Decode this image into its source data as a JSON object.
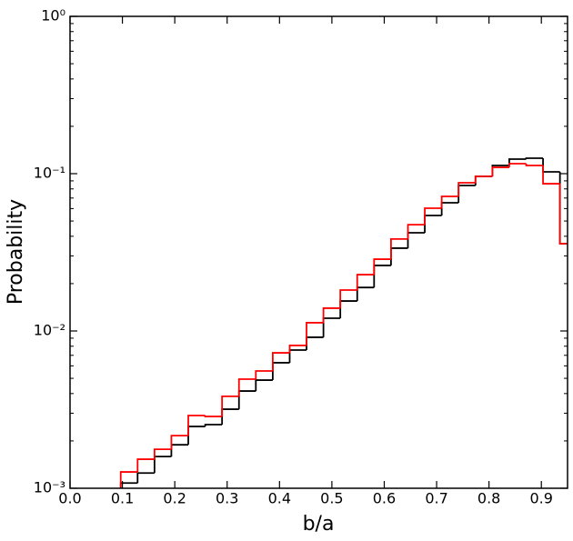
{
  "chart_data": {
    "type": "histogram",
    "x_label": "b/a",
    "y_label": "Probability",
    "bins": [
      0.0968,
      0.129,
      0.1613,
      0.1935,
      0.2258,
      0.2581,
      0.2903,
      0.3226,
      0.3548,
      0.3871,
      0.4194,
      0.4516,
      0.4839,
      0.5161,
      0.5484,
      0.5806,
      0.6129,
      0.6452,
      0.6774,
      0.7097,
      0.7419,
      0.7742,
      0.8065,
      0.8387,
      0.871,
      0.9032,
      0.9355,
      0.9677
    ],
    "series": [
      {
        "color": "#000000",
        "values": [
          0.00108,
          0.00125,
          0.00159,
          0.00189,
          0.00247,
          0.00254,
          0.00318,
          0.00415,
          0.00487,
          0.00628,
          0.00756,
          0.00912,
          0.01205,
          0.0155,
          0.0189,
          0.0261,
          0.0336,
          0.0421,
          0.0542,
          0.0653,
          0.0841,
          0.0961,
          0.1127,
          0.1237,
          0.1254,
          0.1027,
          0.0359
        ]
      },
      {
        "color": "#ff0000",
        "values": [
          0.00127,
          0.00153,
          0.00177,
          0.00216,
          0.0029,
          0.00286,
          0.00384,
          0.00494,
          0.00557,
          0.00726,
          0.00809,
          0.01128,
          0.01396,
          0.0182,
          0.0228,
          0.0286,
          0.0384,
          0.0474,
          0.0603,
          0.0717,
          0.0875,
          0.0961,
          0.1097,
          0.1158,
          0.1127,
          0.0863,
          0.0359
        ]
      }
    ],
    "xlim": [
      0,
      0.95
    ],
    "xticks": [
      {
        "value": 0,
        "label": "0.0"
      },
      0.1,
      0.2,
      0.3,
      0.4,
      0.5,
      0.6,
      0.7,
      0.8,
      0.9
    ],
    "ylim": [
      0.001,
      1
    ],
    "log_y": true,
    "yticks": [
      {
        "value": 0.001,
        "label": "10⁻³"
      },
      {
        "value": 0.01,
        "label": "10⁻²"
      },
      {
        "value": 0.1,
        "label": "10⁻¹"
      },
      {
        "value": 1,
        "label": "10⁰"
      }
    ]
  }
}
